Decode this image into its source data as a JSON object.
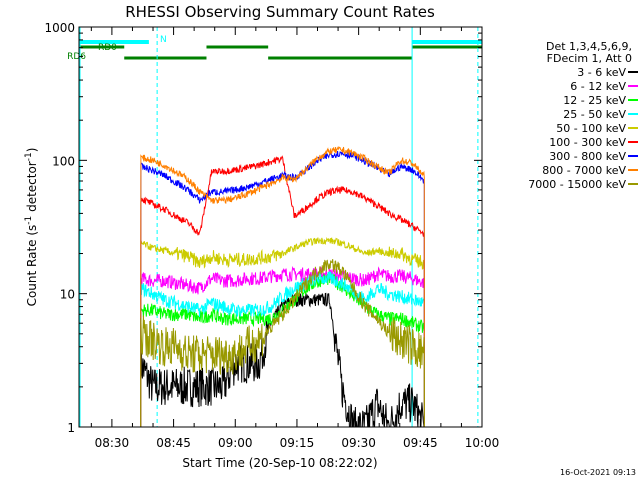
{
  "chart_data": {
    "type": "line",
    "title": "RHESSI Observing Summary Count Rates",
    "xlabel": "Start Time (20-Sep-10 08:22:02)",
    "ylabel_parts": [
      "Count Rate (s",
      "-1",
      " detector",
      "-1",
      ")"
    ],
    "xlim": [
      "08:22",
      "10:00"
    ],
    "ylim": [
      1,
      1000
    ],
    "yscale": "log",
    "x_ticks": [
      "08:30",
      "08:45",
      "09:00",
      "09:15",
      "09:30",
      "09:45",
      "10:00"
    ],
    "y_ticks": [
      "1",
      "10",
      "100",
      "1000"
    ],
    "legend_header": [
      "Det 1,3,4,5,6,9,",
      "FDecim 1, Att 0"
    ],
    "timestamp": "16-Oct-2021 09:13",
    "annotations": [
      {
        "label": "N",
        "color": "#00ffff",
        "intervals": [
          [
            "08:22",
            "08:39"
          ],
          [
            "09:43",
            "10:02"
          ]
        ]
      },
      {
        "label": "RD0",
        "color": "#008000",
        "intervals": [
          [
            "08:22",
            "08:33"
          ],
          [
            "08:53",
            "09:08"
          ],
          [
            "09:43",
            "10:02"
          ]
        ]
      },
      {
        "label": "RD6",
        "color": "#008000",
        "intervals": [
          [
            "08:33",
            "08:53"
          ],
          [
            "09:08",
            "09:43"
          ]
        ]
      }
    ],
    "marker_lines": [
      {
        "time": "08:22",
        "style": "solid",
        "color": "#00ffff"
      },
      {
        "time": "08:41",
        "style": "dashed",
        "color": "#00ffff"
      },
      {
        "time": "09:43",
        "style": "solid",
        "color": "#00ffff"
      },
      {
        "time": "09:59",
        "style": "dashed",
        "color": "#00ffff"
      }
    ],
    "data_start": "08:37",
    "data_end": "09:46",
    "segments": [
      [
        "08:37",
        "08:53"
      ],
      [
        "08:53",
        "09:16"
      ],
      [
        "09:16",
        "09:46"
      ]
    ],
    "series": [
      {
        "name": "3 - 6 keV",
        "color": "#000000",
        "values": [
          3,
          2,
          2,
          2,
          2,
          2,
          2,
          2,
          3,
          3,
          3,
          6,
          8,
          9,
          9,
          9,
          9,
          2,
          1,
          1,
          1.5,
          1,
          1.5,
          1.5,
          1
        ]
      },
      {
        "name": "6 - 12 keV",
        "color": "#ff00ff",
        "values": [
          13,
          12.5,
          12.5,
          12,
          11.5,
          11,
          13,
          12.5,
          12.5,
          13,
          13,
          13.5,
          14,
          14,
          14,
          14,
          14,
          13.5,
          13,
          12.5,
          14,
          13.5,
          13.5,
          13,
          12
        ]
      },
      {
        "name": "12 - 25 keV",
        "color": "#00ff00",
        "values": [
          7.5,
          7.5,
          7,
          7,
          7,
          6.5,
          7,
          6.5,
          6.5,
          6.5,
          6.5,
          6.5,
          7.5,
          9,
          11,
          12.5,
          13,
          11.5,
          9.5,
          8,
          7,
          6.5,
          6.5,
          6,
          5.5
        ]
      },
      {
        "name": "25 - 50 keV",
        "color": "#00ffff",
        "values": [
          11,
          10,
          9,
          8.5,
          8,
          7.5,
          8.5,
          8,
          7.5,
          7.5,
          7.5,
          8,
          9.5,
          11,
          12,
          13,
          13,
          12,
          10.5,
          9,
          11,
          10,
          9.5,
          9,
          8.5
        ]
      },
      {
        "name": "50 - 100 keV",
        "color": "#cccc00",
        "values": [
          24,
          22,
          21,
          20,
          19,
          17,
          19,
          18,
          18,
          18,
          18.5,
          19,
          20,
          22,
          24,
          25,
          25,
          24,
          22,
          20,
          21,
          20,
          20,
          18,
          17
        ]
      },
      {
        "name": "100 - 300 keV",
        "color": "#ff0000",
        "values": [
          52,
          47,
          43,
          38,
          34,
          28,
          82,
          83,
          85,
          88,
          92,
          98,
          103,
          38,
          44,
          52,
          58,
          60,
          58,
          52,
          46,
          40,
          36,
          32,
          28
        ]
      },
      {
        "name": "300 - 800 keV",
        "color": "#0000ff",
        "values": [
          90,
          84,
          77,
          68,
          60,
          50,
          58,
          58,
          60,
          63,
          67,
          72,
          77,
          74,
          85,
          100,
          110,
          113,
          108,
          98,
          88,
          78,
          90,
          85,
          70
        ]
      },
      {
        "name": "800 - 7000 keV",
        "color": "#ff8000",
        "values": [
          105,
          100,
          92,
          82,
          72,
          58,
          50,
          50,
          52,
          56,
          61,
          67,
          74,
          72,
          86,
          105,
          117,
          120,
          113,
          102,
          90,
          80,
          100,
          95,
          76
        ]
      },
      {
        "name": "7000 - 15000 keV",
        "color": "#999900",
        "values": [
          5,
          4.5,
          4,
          4,
          3.5,
          3.5,
          3.5,
          3.5,
          3.5,
          4,
          4.5,
          5.5,
          7,
          9,
          12,
          15,
          17,
          15,
          11,
          8,
          6.5,
          5,
          4.5,
          4,
          3.5
        ]
      }
    ]
  }
}
